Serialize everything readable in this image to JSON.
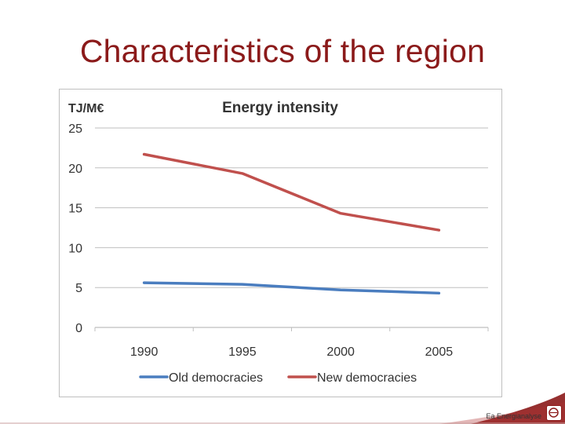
{
  "slide": {
    "title": "Characteristics of the region",
    "footer": "Ea Energianalyse"
  },
  "colors": {
    "title": "#8b1a1a",
    "old_series": "#4a7dbf",
    "new_series": "#c0504d",
    "grid": "#bfbfbf",
    "footer_band": "#8b1a1a"
  },
  "chart_data": {
    "type": "line",
    "title": "Energy intensity",
    "ylabel": "TJ/M€",
    "xlabel": "",
    "categories": [
      "1990",
      "1995",
      "2000",
      "2005"
    ],
    "ylim": [
      0,
      25
    ],
    "yticks": [
      0,
      5,
      10,
      15,
      20,
      25
    ],
    "grid": true,
    "legend": "bottom",
    "series": [
      {
        "name": "Old democracies",
        "values": [
          5.6,
          5.4,
          4.7,
          4.3
        ],
        "color": "#4a7dbf"
      },
      {
        "name": "New democracies",
        "values": [
          21.7,
          19.3,
          14.3,
          12.2
        ],
        "color": "#c0504d"
      }
    ]
  }
}
